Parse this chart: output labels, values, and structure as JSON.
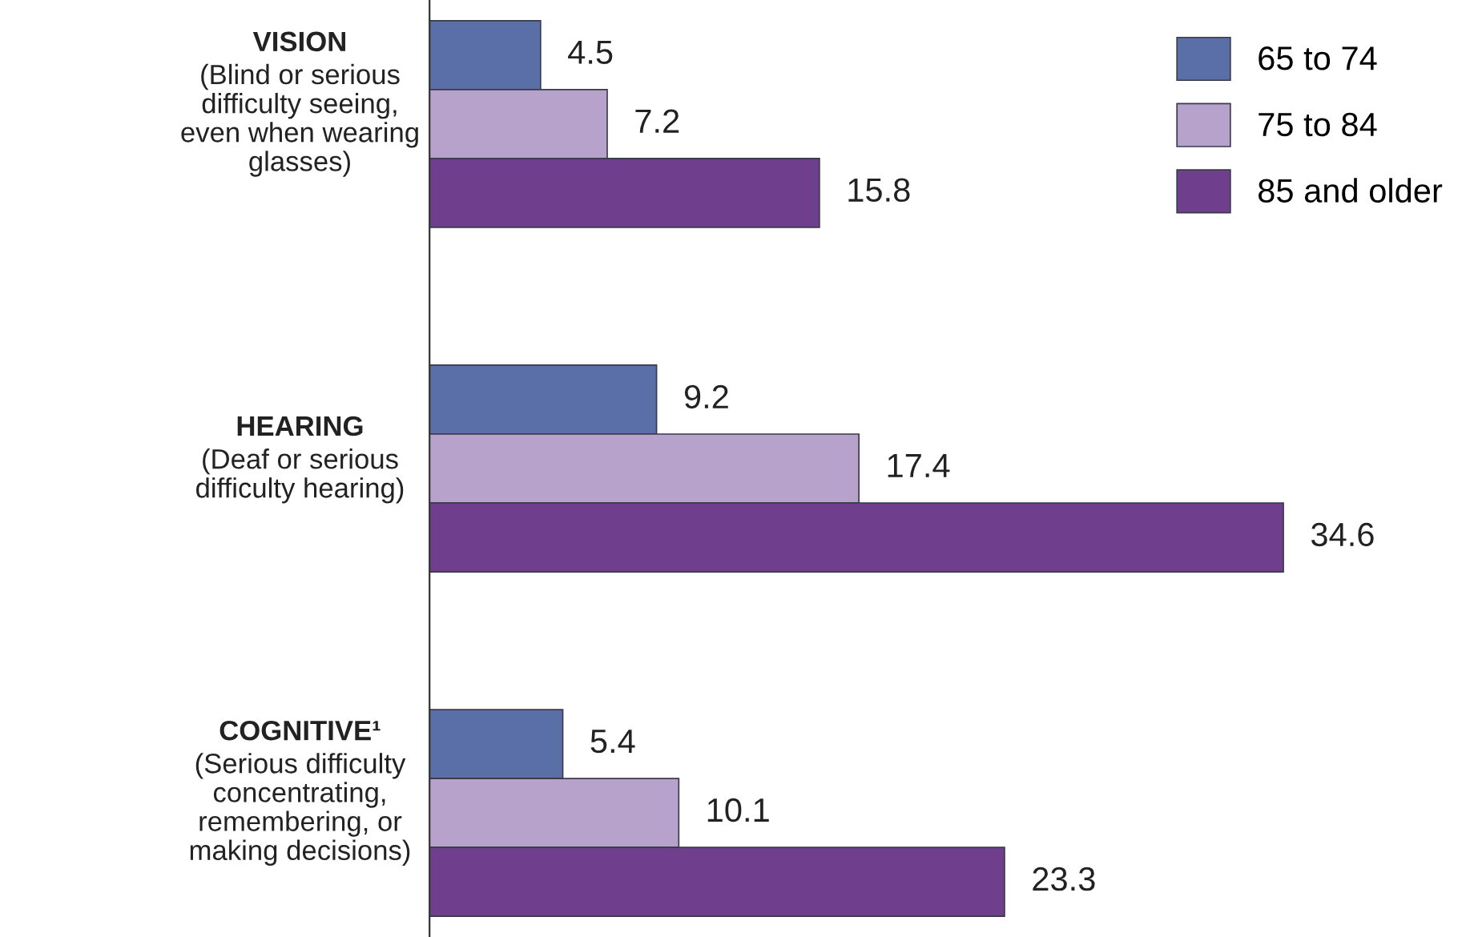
{
  "chart_data": {
    "type": "bar",
    "orientation": "horizontal",
    "categories": [
      "VISION\n(Blind or serious\ndifficulty seeing,\neven when wearing\nglasses)",
      "HEARING\n(Deaf or serious\ndifficulty hearing)",
      "COGNITIVE¹\n(Serious difficulty\nconcentrating,\nremembering, or\nmaking decisions)"
    ],
    "series": [
      {
        "name": "65 to 74",
        "color": "#5a6ea8",
        "values": [
          4.5,
          9.2,
          5.4
        ]
      },
      {
        "name": "75 to 84",
        "color": "#b7a2cc",
        "values": [
          7.2,
          17.4,
          10.1
        ]
      },
      {
        "name": "85 and older",
        "color": "#6f3f8e",
        "values": [
          15.8,
          34.6,
          23.3
        ]
      }
    ],
    "data_labels": true,
    "legend": "top right"
  }
}
